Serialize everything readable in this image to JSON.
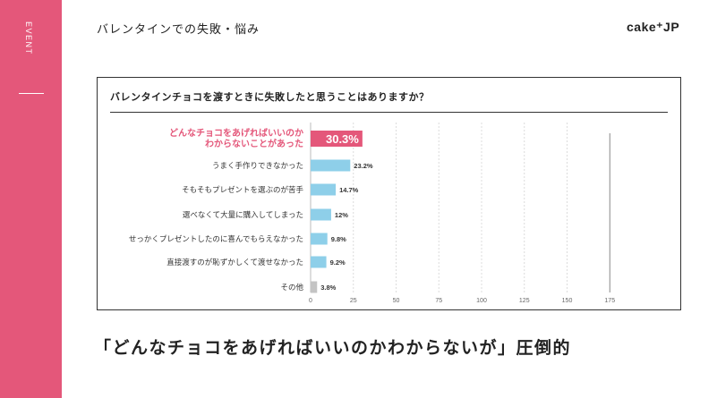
{
  "sidebar": {
    "tag": "EVENT"
  },
  "header": {
    "title": "バレンタインでの失敗・悩み",
    "logo": "cake⁺JP"
  },
  "colors": {
    "accent": "#e4577a",
    "bar": "#8ecfe9",
    "bar_other": "#c4c4c4",
    "gridline": "#dcdcdc"
  },
  "chart_data": {
    "type": "bar",
    "orientation": "horizontal",
    "title": "バレンタインチョコを渡すときに失敗したと思うことはありますか？",
    "categories": [
      "どんなチョコをあげればいいのか\nわからないことがあった",
      "うまく手作りできなかった",
      "そもそもプレゼントを選ぶのが苦手",
      "選べなくて大量に購入してしまった",
      "せっかくプレゼントしたのに喜んでもらえなかった",
      "直接渡すのが恥ずかしくて渡せなかった",
      "その他"
    ],
    "values": [
      30.3,
      23.2,
      14.7,
      12,
      9.8,
      9.2,
      3.8
    ],
    "value_labels": [
      "30.3%",
      "23.2%",
      "14.7%",
      "12%",
      "9.8%",
      "9.2%",
      "3.8%"
    ],
    "xticks": [
      "0",
      "25",
      "50",
      "75",
      "100",
      "125",
      "150",
      "175"
    ],
    "xlim": [
      0,
      175
    ],
    "highlight_index": 0,
    "grid": true
  },
  "headline": "「どんなチョコをあげればいいのかわからないが」圧倒的"
}
